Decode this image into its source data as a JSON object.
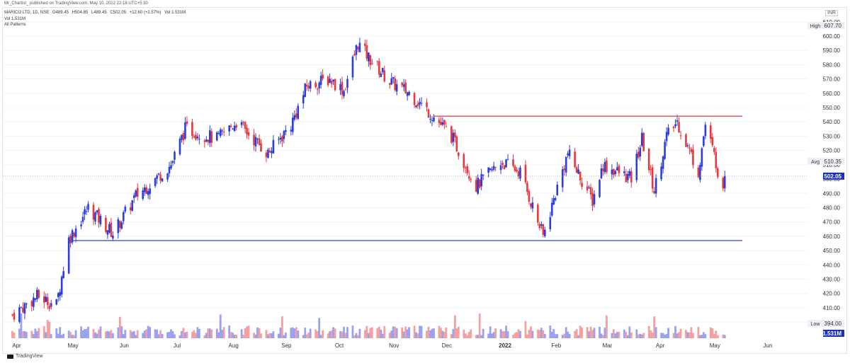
{
  "header": {
    "published_line": "Mr_Chartist_ published on TradingView.com, May 10, 2022 22:18 UTC+5:30"
  },
  "legend": {
    "symbol": "MARICO LTD, 1D, NSE",
    "open": "O489.45",
    "high": "H504.85",
    "low": "L489.45",
    "close": "C502.05",
    "change": "+12.60 (+2.57%)",
    "volume": "Vol 1.531M",
    "volume_line": "Vol 1.531M",
    "patterns": "All Patterns"
  },
  "axis": {
    "currency": "INR"
  },
  "footer": {
    "brand": "TradingView"
  },
  "colors": {
    "up": "#2a3de0",
    "down": "#e8373d",
    "vol_up": "#9aa1f0",
    "vol_down": "#f3a0a0",
    "resistance": "#e8373d",
    "support": "#4251d8",
    "last_price_bg": "#1d2fbf"
  },
  "chart_data": {
    "type": "candlestick",
    "symbol": "MARICO LTD",
    "interval": "1D",
    "exchange": "NSE",
    "y_ticks": [
      400,
      410,
      420,
      430,
      440,
      450,
      460,
      470,
      480,
      490,
      500,
      510,
      520,
      530,
      540,
      550,
      560,
      570,
      580,
      590,
      600,
      610
    ],
    "y_tick_labels": [
      "400.00",
      "410.00",
      "420.00",
      "430.00",
      "440.00",
      "450.00",
      "460.00",
      "470.00",
      "480.00",
      "490.00",
      "500.00",
      "510.00",
      "520.00",
      "530.00",
      "540.00",
      "550.00",
      "560.00",
      "570.00",
      "580.00",
      "590.00",
      "600.00",
      "610.00"
    ],
    "ylim": [
      394,
      620
    ],
    "x_labels": [
      "Apr",
      "May",
      "Jun",
      "Jul",
      "Aug",
      "Sep",
      "Oct",
      "Nov",
      "Dec",
      "2022",
      "Feb",
      "Mar",
      "Apr",
      "May",
      "Jun"
    ],
    "price_markers": [
      {
        "label": "High",
        "value": "607.70"
      },
      {
        "label": "Avg",
        "value": "510.35"
      },
      {
        "label": "",
        "value": "502.05"
      },
      {
        "label": "Low",
        "value": "394.00"
      }
    ],
    "volume_label": "1.531M",
    "last_price": 502.05,
    "high": 607.7,
    "low": 394.0,
    "avg": 510.35,
    "lines": [
      {
        "kind": "resistance",
        "price": 544,
        "from": "2021-11-26",
        "to": "2022-05-20"
      },
      {
        "kind": "support",
        "price": 457,
        "from": "2021-05-03",
        "to": "2022-05-20"
      }
    ],
    "anchors": [
      {
        "date": "2021-04-01",
        "close": 405
      },
      {
        "date": "2021-04-15",
        "close": 418
      },
      {
        "date": "2021-04-26",
        "close": 412
      },
      {
        "date": "2021-05-03",
        "close": 458
      },
      {
        "date": "2021-05-14",
        "close": 480
      },
      {
        "date": "2021-05-28",
        "close": 462
      },
      {
        "date": "2021-06-10",
        "close": 488
      },
      {
        "date": "2021-06-30",
        "close": 510
      },
      {
        "date": "2021-07-08",
        "close": 535
      },
      {
        "date": "2021-07-26",
        "close": 528
      },
      {
        "date": "2021-08-06",
        "close": 540
      },
      {
        "date": "2021-08-24",
        "close": 518
      },
      {
        "date": "2021-09-06",
        "close": 538
      },
      {
        "date": "2021-09-15",
        "close": 565
      },
      {
        "date": "2021-09-28",
        "close": 570
      },
      {
        "date": "2021-10-06",
        "close": 562
      },
      {
        "date": "2021-10-14",
        "close": 595
      },
      {
        "date": "2021-10-20",
        "close": 585
      },
      {
        "date": "2021-11-01",
        "close": 568
      },
      {
        "date": "2021-11-12",
        "close": 560
      },
      {
        "date": "2021-11-24",
        "close": 546
      },
      {
        "date": "2021-12-06",
        "close": 530
      },
      {
        "date": "2021-12-20",
        "close": 495
      },
      {
        "date": "2022-01-03",
        "close": 512
      },
      {
        "date": "2022-01-14",
        "close": 505
      },
      {
        "date": "2022-01-27",
        "close": 460
      },
      {
        "date": "2022-02-03",
        "close": 490
      },
      {
        "date": "2022-02-10",
        "close": 518
      },
      {
        "date": "2022-02-24",
        "close": 485
      },
      {
        "date": "2022-03-02",
        "close": 510
      },
      {
        "date": "2022-03-18",
        "close": 500
      },
      {
        "date": "2022-03-24",
        "close": 528
      },
      {
        "date": "2022-03-31",
        "close": 492
      },
      {
        "date": "2022-04-07",
        "close": 530
      },
      {
        "date": "2022-04-13",
        "close": 540
      },
      {
        "date": "2022-04-25",
        "close": 505
      },
      {
        "date": "2022-04-29",
        "close": 538
      },
      {
        "date": "2022-05-05",
        "close": 512
      },
      {
        "date": "2022-05-09",
        "close": 489
      },
      {
        "date": "2022-05-10",
        "close": 502.05
      }
    ]
  }
}
